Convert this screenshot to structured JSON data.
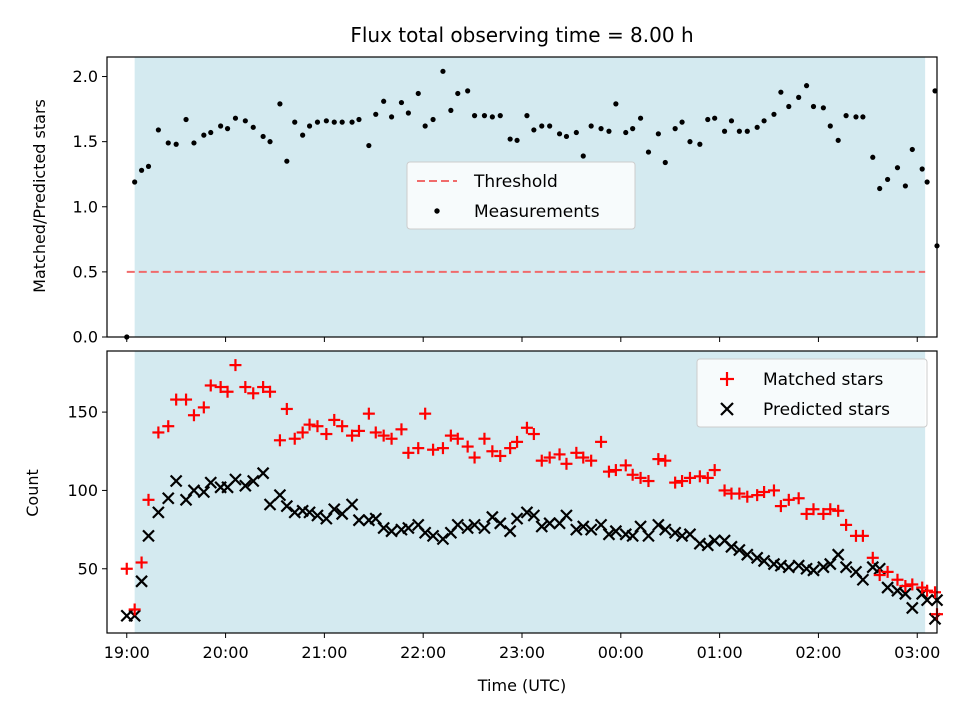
{
  "chart_data": [
    {
      "type": "scatter",
      "title": "Flux total observing time = 8.00 h",
      "xlabel": "",
      "ylabel": "Matched/Predicted stars",
      "ylim": [
        0,
        2.15
      ],
      "yticks": [
        "0.0",
        "0.5",
        "1.0",
        "1.5",
        "2.0"
      ],
      "ytick_values": [
        0,
        0.5,
        1.0,
        1.5,
        2.0
      ],
      "xlim": [
        -0.2,
        8.2
      ],
      "shaded_interval": [
        0.08,
        8.08
      ],
      "shade_color": "#d4eaf0",
      "legend_position": "center",
      "series": [
        {
          "name": "Threshold",
          "kind": "dashed-line",
          "color": "#f06b6b",
          "x": [
            0.0,
            8.08
          ],
          "y": [
            0.5,
            0.5
          ]
        },
        {
          "name": "Measurements",
          "kind": "dots",
          "color": "#000000",
          "x": [
            0.0,
            0.08,
            0.15,
            0.22,
            0.32,
            0.42,
            0.5,
            0.6,
            0.68,
            0.78,
            0.85,
            0.95,
            1.02,
            1.1,
            1.2,
            1.28,
            1.38,
            1.45,
            1.55,
            1.62,
            1.7,
            1.78,
            1.85,
            1.93,
            2.02,
            2.1,
            2.18,
            2.28,
            2.35,
            2.45,
            2.52,
            2.6,
            2.68,
            2.78,
            2.85,
            2.95,
            3.02,
            3.1,
            3.2,
            3.28,
            3.35,
            3.45,
            3.52,
            3.62,
            3.7,
            3.78,
            3.88,
            3.95,
            4.05,
            4.12,
            4.2,
            4.28,
            4.38,
            4.45,
            4.55,
            4.62,
            4.7,
            4.8,
            4.88,
            4.95,
            5.05,
            5.12,
            5.2,
            5.28,
            5.38,
            5.45,
            5.55,
            5.62,
            5.7,
            5.8,
            5.88,
            5.95,
            6.05,
            6.12,
            6.2,
            6.28,
            6.38,
            6.45,
            6.55,
            6.62,
            6.7,
            6.8,
            6.88,
            6.95,
            7.05,
            7.12,
            7.2,
            7.28,
            7.38,
            7.45,
            7.55,
            7.62,
            7.7,
            7.8,
            7.88,
            7.95,
            8.05
          ],
          "y": [
            0.0,
            1.19,
            1.28,
            1.31,
            1.59,
            1.49,
            1.48,
            1.67,
            1.49,
            1.55,
            1.57,
            1.62,
            1.6,
            1.68,
            1.66,
            1.61,
            1.54,
            1.5,
            1.79,
            1.35,
            1.65,
            1.55,
            1.62,
            1.65,
            1.66,
            1.65,
            1.65,
            1.65,
            1.67,
            1.47,
            1.71,
            1.81,
            1.69,
            1.8,
            1.72,
            1.87,
            1.62,
            1.67,
            2.04,
            1.74,
            1.87,
            1.89,
            1.7,
            1.7,
            1.69,
            1.7,
            1.52,
            1.51,
            1.7,
            1.59,
            1.62,
            1.62,
            1.56,
            1.54,
            1.57,
            1.39,
            1.62,
            1.6,
            1.58,
            1.79,
            1.57,
            1.6,
            1.68,
            1.42,
            1.56,
            1.34,
            1.6,
            1.65,
            1.5,
            1.48,
            1.67,
            1.68,
            1.58,
            1.66,
            1.58,
            1.58,
            1.61,
            1.66,
            1.71,
            1.88,
            1.77,
            1.84,
            1.93,
            1.77,
            1.76,
            1.62,
            1.51,
            1.7,
            1.69,
            1.69,
            1.38,
            1.14,
            1.21,
            1.3,
            1.16,
            1.44,
            1.29
          ]
        }
      ],
      "extra_points": {
        "x": [
          8.1,
          8.18
        ],
        "y": [
          1.19,
          1.89
        ]
      },
      "last_point": {
        "x": 8.2,
        "y": 0.7
      }
    },
    {
      "type": "scatter",
      "title": "",
      "xlabel": "Time (UTC)",
      "ylabel": "Count",
      "ylim": [
        9,
        189
      ],
      "yticks": [
        "50",
        "100",
        "150"
      ],
      "ytick_values": [
        50,
        100,
        150
      ],
      "xlim": [
        -0.2,
        8.2
      ],
      "xticks": [
        "19:00",
        "20:00",
        "21:00",
        "22:00",
        "23:00",
        "00:00",
        "01:00",
        "02:00",
        "03:00"
      ],
      "xtick_values": [
        0,
        1,
        2,
        3,
        4,
        5,
        6,
        7,
        8
      ],
      "shaded_interval": [
        0.08,
        8.08
      ],
      "legend_position": "top-right",
      "series": [
        {
          "name": "Matched stars",
          "kind": "plus",
          "color": "#ff0000",
          "x": [
            0.0,
            0.08,
            0.15,
            0.22,
            0.32,
            0.42,
            0.5,
            0.6,
            0.68,
            0.78,
            0.85,
            0.95,
            1.02,
            1.1,
            1.2,
            1.28,
            1.38,
            1.45,
            1.55,
            1.62,
            1.7,
            1.78,
            1.85,
            1.93,
            2.02,
            2.1,
            2.18,
            2.28,
            2.35,
            2.45,
            2.52,
            2.6,
            2.68,
            2.78,
            2.85,
            2.95,
            3.02,
            3.1,
            3.2,
            3.28,
            3.35,
            3.45,
            3.52,
            3.62,
            3.7,
            3.78,
            3.88,
            3.95,
            4.05,
            4.12,
            4.2,
            4.28,
            4.38,
            4.45,
            4.55,
            4.62,
            4.7,
            4.8,
            4.88,
            4.95,
            5.05,
            5.12,
            5.2,
            5.28,
            5.38,
            5.45,
            5.55,
            5.62,
            5.7,
            5.8,
            5.88,
            5.95,
            6.05,
            6.12,
            6.2,
            6.28,
            6.38,
            6.45,
            6.55,
            6.62,
            6.7,
            6.8,
            6.88,
            6.95,
            7.05,
            7.12,
            7.2,
            7.28,
            7.38,
            7.45,
            7.55,
            7.62,
            7.7,
            7.8,
            7.88,
            7.95,
            8.05,
            8.1,
            8.18,
            8.2
          ],
          "y": [
            50,
            24,
            54,
            94,
            137,
            141,
            158,
            158,
            148,
            153,
            167,
            166,
            163,
            180,
            166,
            162,
            166,
            163,
            132,
            152,
            133,
            137,
            142,
            141,
            136,
            145,
            141,
            135,
            138,
            149,
            137,
            135,
            133,
            139,
            124,
            127,
            149,
            126,
            127,
            135,
            133,
            128,
            121,
            133,
            125,
            122,
            127,
            131,
            140,
            136,
            119,
            121,
            123,
            117,
            124,
            121,
            119,
            131,
            112,
            113,
            116,
            110,
            108,
            106,
            120,
            119,
            105,
            106,
            108,
            109,
            108,
            113,
            100,
            98,
            98,
            96,
            97,
            99,
            100,
            90,
            94,
            95,
            85,
            88,
            85,
            88,
            87,
            78,
            71,
            71,
            57,
            46,
            48,
            43,
            39,
            40,
            38,
            36,
            35,
            21
          ]
        },
        {
          "name": "Predicted stars",
          "kind": "x",
          "color": "#000000",
          "x": [
            0.0,
            0.08,
            0.15,
            0.22,
            0.32,
            0.42,
            0.5,
            0.6,
            0.68,
            0.78,
            0.85,
            0.95,
            1.02,
            1.1,
            1.2,
            1.28,
            1.38,
            1.45,
            1.55,
            1.62,
            1.7,
            1.78,
            1.85,
            1.93,
            2.02,
            2.1,
            2.18,
            2.28,
            2.35,
            2.45,
            2.52,
            2.6,
            2.68,
            2.78,
            2.85,
            2.95,
            3.02,
            3.1,
            3.2,
            3.28,
            3.35,
            3.45,
            3.52,
            3.62,
            3.7,
            3.78,
            3.88,
            3.95,
            4.05,
            4.12,
            4.2,
            4.28,
            4.38,
            4.45,
            4.55,
            4.62,
            4.7,
            4.8,
            4.88,
            4.95,
            5.05,
            5.12,
            5.2,
            5.28,
            5.38,
            5.45,
            5.55,
            5.62,
            5.7,
            5.8,
            5.88,
            5.95,
            6.05,
            6.12,
            6.2,
            6.28,
            6.38,
            6.45,
            6.55,
            6.62,
            6.7,
            6.8,
            6.88,
            6.95,
            7.05,
            7.12,
            7.2,
            7.28,
            7.38,
            7.45,
            7.55,
            7.62,
            7.7,
            7.8,
            7.88,
            7.95,
            8.05,
            8.1,
            8.18,
            8.2
          ],
          "y": [
            20,
            20,
            42,
            71,
            86,
            95,
            106,
            94,
            100,
            99,
            105,
            102,
            102,
            107,
            103,
            106,
            111,
            91,
            97,
            90,
            86,
            87,
            86,
            84,
            82,
            88,
            85,
            91,
            81,
            81,
            82,
            76,
            74,
            75,
            76,
            78,
            73,
            71,
            69,
            73,
            78,
            76,
            78,
            76,
            83,
            79,
            74,
            82,
            86,
            84,
            77,
            79,
            79,
            84,
            75,
            77,
            75,
            78,
            72,
            74,
            72,
            71,
            77,
            71,
            78,
            75,
            73,
            71,
            72,
            66,
            65,
            68,
            68,
            64,
            62,
            59,
            57,
            55,
            53,
            52,
            51,
            52,
            50,
            49,
            51,
            53,
            59,
            51,
            48,
            43,
            51,
            50,
            38,
            36,
            34,
            25,
            34,
            30,
            18,
            30
          ]
        }
      ]
    }
  ]
}
